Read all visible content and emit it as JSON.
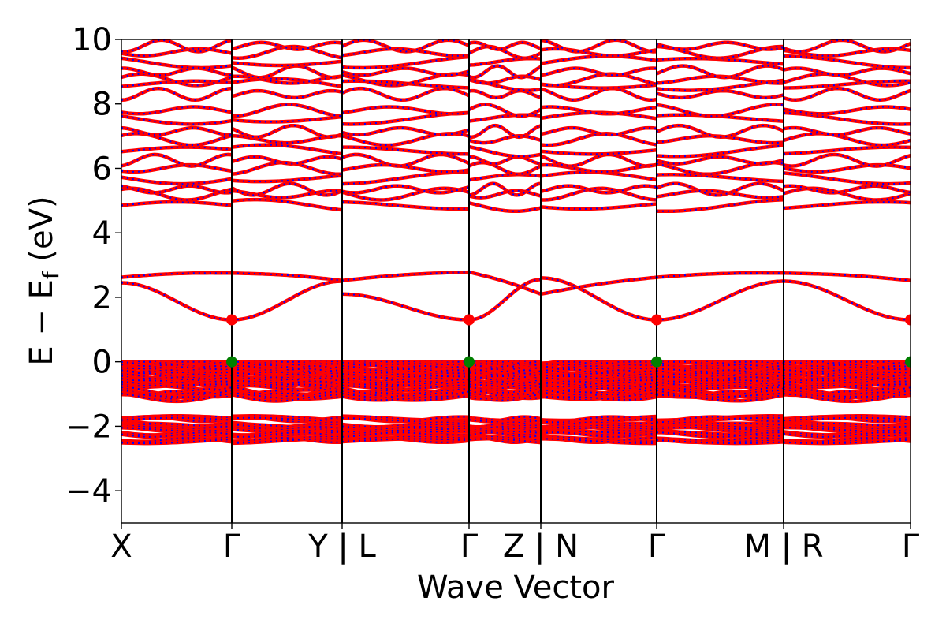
{
  "chart_data": {
    "type": "line",
    "title": "",
    "xlabel": "Wave Vector",
    "ylabel": "E − E",
    "ylabel_subscript": "f",
    "ylabel_unit": " (eV)",
    "ylim": [
      -5,
      10
    ],
    "yticks": [
      -4,
      -2,
      0,
      2,
      4,
      6,
      8,
      10
    ],
    "ytick_labels": [
      "−4",
      "−2",
      "0",
      "2",
      "4",
      "6",
      "8",
      "10"
    ],
    "grid": false,
    "kpath": {
      "labels": [
        "X",
        "Γ",
        "Y | L",
        "Γ",
        "Z | N",
        "Γ",
        "M | R",
        "Γ"
      ],
      "positions": [
        0,
        1,
        2,
        3.15,
        3.8,
        4.85,
        6.0,
        7.15
      ]
    },
    "series": [
      {
        "color": "#ff0000",
        "style": "solid"
      },
      {
        "color": "#0000ff",
        "style": "dotted"
      }
    ],
    "markers": [
      {
        "type": "CBM",
        "color": "#ff0000",
        "points": [
          [
            1,
            1.3
          ],
          [
            3.15,
            1.3
          ],
          [
            4.85,
            1.3
          ],
          [
            7.15,
            1.3
          ]
        ]
      },
      {
        "type": "VBM",
        "color": "#008000",
        "points": [
          [
            1,
            0.0
          ],
          [
            3.15,
            0.0
          ],
          [
            4.85,
            0.0
          ],
          [
            7.15,
            0.0
          ]
        ]
      }
    ],
    "bands": {
      "conduction_low": {
        "top": [
          2.62,
          2.75,
          2.52,
          2.78,
          2.1
        ],
        "lower_X_to_Gamma": [
          2.45,
          1.3
        ],
        "note_values": [
          1.3,
          2.5,
          2.75
        ]
      },
      "upper_levels": [
        4.85,
        5.2,
        5.35,
        5.7,
        6.0,
        6.25,
        6.55,
        6.9,
        7.15,
        7.55,
        7.8,
        8.3,
        8.6,
        8.75,
        9.0,
        9.3,
        9.6,
        9.8
      ],
      "valence_dense_range": [
        -1.05,
        0.0
      ],
      "valence_lower_levels": [
        -1.75,
        -1.95,
        -2.05,
        -2.2,
        -2.4
      ]
    }
  }
}
